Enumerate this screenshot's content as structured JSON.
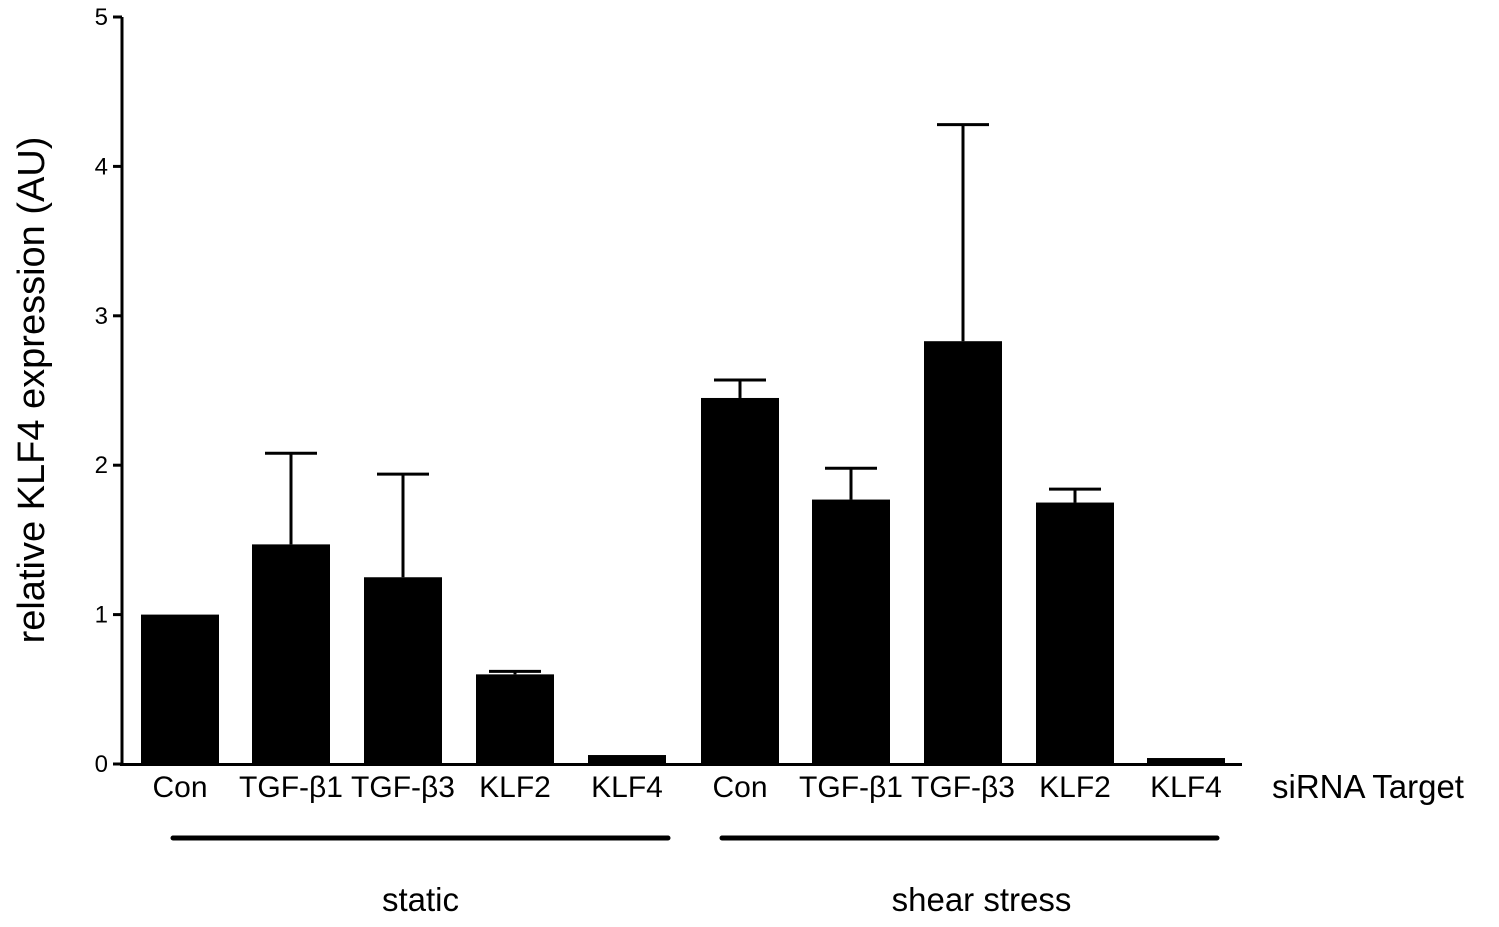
{
  "chart_data": {
    "type": "bar",
    "title": "",
    "ylabel": "relative KLF4 expression (AU)",
    "xlabel": "siRNA Target",
    "ylim": [
      0,
      5
    ],
    "yticks": [
      "0",
      "1",
      "2",
      "3",
      "4",
      "5"
    ],
    "grid": false,
    "legend": "none",
    "bar_color": "#000000",
    "groups": [
      {
        "name": "static",
        "bars": [
          {
            "category": "Con",
            "value": 1.0,
            "error": 0.0
          },
          {
            "category": "TGF-β1",
            "value": 1.47,
            "error": 0.61
          },
          {
            "category": "TGF-β3",
            "value": 1.25,
            "error": 0.69
          },
          {
            "category": "KLF2",
            "value": 0.6,
            "error": 0.02
          },
          {
            "category": "KLF4",
            "value": 0.06,
            "error": 0.0
          }
        ]
      },
      {
        "name": "shear stress",
        "bars": [
          {
            "category": "Con",
            "value": 2.45,
            "error": 0.12
          },
          {
            "category": "TGF-β1",
            "value": 1.77,
            "error": 0.21
          },
          {
            "category": "TGF-β3",
            "value": 2.83,
            "error": 1.45
          },
          {
            "category": "KLF2",
            "value": 1.75,
            "error": 0.09
          },
          {
            "category": "KLF4",
            "value": 0.04,
            "error": 0.0
          }
        ]
      }
    ]
  }
}
